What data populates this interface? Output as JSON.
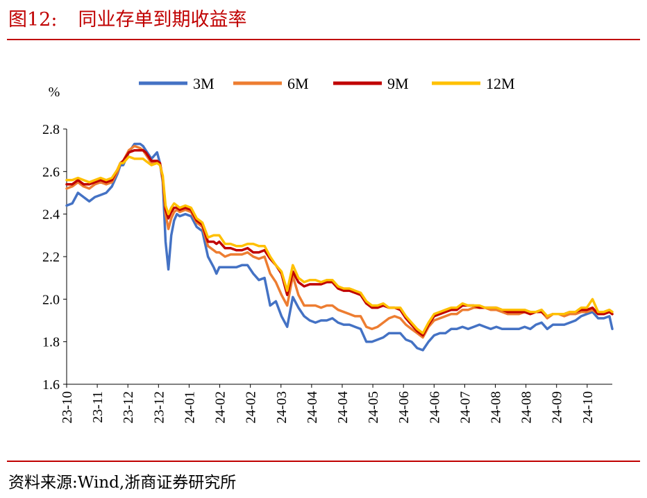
{
  "figure": {
    "number": "图12:",
    "title": "同业存单到期收益率",
    "source": "资料来源:Wind,浙商证券研究所"
  },
  "chart_data": {
    "type": "line",
    "title": "同业存单到期收益率",
    "ylabel": "%",
    "xlabel": "",
    "ylim": [
      1.6,
      2.8
    ],
    "yticks": [
      "1.6",
      "1.8",
      "2.0",
      "2.2",
      "2.4",
      "2.6",
      "2.8"
    ],
    "grid": false,
    "legend_position": "top",
    "x_ticks": [
      "23-10",
      "23-11",
      "23-12",
      "23-12",
      "24-01",
      "24-02",
      "24-02",
      "24-03",
      "24-04",
      "24-04",
      "24-05",
      "24-06",
      "24-06",
      "24-07",
      "24-08",
      "24-08",
      "24-09",
      "24-10"
    ],
    "x": [
      0,
      2,
      4,
      6,
      8,
      10,
      12,
      14,
      16,
      18,
      19,
      20,
      22,
      24,
      26,
      27,
      28,
      30,
      32,
      33,
      34,
      35,
      36,
      37,
      38,
      39,
      40,
      42,
      44,
      46,
      48,
      50,
      52,
      53,
      54,
      56,
      58,
      60,
      62,
      64,
      66,
      68,
      70,
      72,
      74,
      76,
      78,
      80,
      82,
      84,
      86,
      88,
      90,
      92,
      94,
      96,
      98,
      100,
      102,
      104,
      106,
      108,
      110,
      112,
      114,
      116,
      118,
      120,
      122,
      124,
      126,
      128,
      130,
      132,
      134,
      136,
      138,
      140,
      142,
      144,
      146,
      148,
      150,
      152,
      154,
      156,
      158,
      160,
      162,
      164,
      166,
      168,
      170,
      172,
      174,
      176,
      178,
      180,
      182,
      184,
      186,
      188,
      190,
      192,
      193
    ],
    "series": [
      {
        "name": "3M",
        "color": "#4472c4",
        "values": [
          2.44,
          2.45,
          2.5,
          2.48,
          2.46,
          2.48,
          2.49,
          2.5,
          2.53,
          2.59,
          2.63,
          2.63,
          2.69,
          2.73,
          2.73,
          2.72,
          2.7,
          2.66,
          2.69,
          2.64,
          2.55,
          2.27,
          2.14,
          2.3,
          2.37,
          2.4,
          2.39,
          2.4,
          2.39,
          2.34,
          2.32,
          2.2,
          2.15,
          2.12,
          2.15,
          2.15,
          2.15,
          2.15,
          2.16,
          2.16,
          2.12,
          2.09,
          2.1,
          1.97,
          1.99,
          1.92,
          1.87,
          2.01,
          1.96,
          1.92,
          1.9,
          1.89,
          1.9,
          1.9,
          1.91,
          1.89,
          1.88,
          1.88,
          1.87,
          1.86,
          1.8,
          1.8,
          1.81,
          1.82,
          1.84,
          1.84,
          1.84,
          1.81,
          1.8,
          1.77,
          1.76,
          1.8,
          1.83,
          1.84,
          1.84,
          1.86,
          1.86,
          1.87,
          1.86,
          1.87,
          1.88,
          1.87,
          1.86,
          1.87,
          1.86,
          1.86,
          1.86,
          1.86,
          1.87,
          1.86,
          1.88,
          1.89,
          1.86,
          1.88,
          1.88,
          1.88,
          1.89,
          1.9,
          1.92,
          1.93,
          1.94,
          1.91,
          1.91,
          1.92,
          1.86
        ]
      },
      {
        "name": "6M",
        "color": "#ed7d31",
        "values": [
          2.52,
          2.53,
          2.55,
          2.53,
          2.52,
          2.54,
          2.55,
          2.54,
          2.55,
          2.6,
          2.64,
          2.65,
          2.7,
          2.72,
          2.71,
          2.7,
          2.68,
          2.64,
          2.65,
          2.64,
          2.56,
          2.4,
          2.33,
          2.38,
          2.41,
          2.42,
          2.41,
          2.42,
          2.41,
          2.36,
          2.34,
          2.25,
          2.23,
          2.22,
          2.22,
          2.2,
          2.21,
          2.21,
          2.21,
          2.22,
          2.2,
          2.19,
          2.2,
          2.12,
          2.08,
          2.02,
          1.97,
          2.11,
          2.02,
          1.97,
          1.97,
          1.97,
          1.96,
          1.97,
          1.97,
          1.95,
          1.94,
          1.93,
          1.92,
          1.92,
          1.87,
          1.86,
          1.87,
          1.89,
          1.91,
          1.92,
          1.91,
          1.88,
          1.86,
          1.84,
          1.82,
          1.87,
          1.9,
          1.91,
          1.92,
          1.93,
          1.93,
          1.95,
          1.95,
          1.96,
          1.96,
          1.96,
          1.95,
          1.95,
          1.94,
          1.93,
          1.93,
          1.93,
          1.94,
          1.93,
          1.94,
          1.94,
          1.91,
          1.93,
          1.93,
          1.92,
          1.93,
          1.93,
          1.94,
          1.94,
          1.95,
          1.93,
          1.93,
          1.94,
          1.93
        ]
      },
      {
        "name": "9M",
        "color": "#c00000",
        "values": [
          2.54,
          2.54,
          2.56,
          2.54,
          2.54,
          2.55,
          2.56,
          2.55,
          2.56,
          2.61,
          2.64,
          2.65,
          2.69,
          2.7,
          2.7,
          2.7,
          2.69,
          2.65,
          2.65,
          2.64,
          2.57,
          2.42,
          2.38,
          2.41,
          2.43,
          2.43,
          2.42,
          2.43,
          2.42,
          2.37,
          2.35,
          2.27,
          2.27,
          2.26,
          2.27,
          2.24,
          2.24,
          2.23,
          2.23,
          2.24,
          2.22,
          2.22,
          2.23,
          2.19,
          2.16,
          2.12,
          2.02,
          2.13,
          2.08,
          2.06,
          2.07,
          2.07,
          2.07,
          2.08,
          2.08,
          2.05,
          2.04,
          2.04,
          2.03,
          2.02,
          1.98,
          1.96,
          1.96,
          1.97,
          1.96,
          1.96,
          1.95,
          1.91,
          1.88,
          1.85,
          1.83,
          1.88,
          1.92,
          1.93,
          1.94,
          1.95,
          1.95,
          1.97,
          1.97,
          1.97,
          1.96,
          1.96,
          1.96,
          1.96,
          1.95,
          1.94,
          1.94,
          1.94,
          1.94,
          1.93,
          1.94,
          1.94,
          1.92,
          1.93,
          1.93,
          1.93,
          1.94,
          1.94,
          1.95,
          1.95,
          1.96,
          1.93,
          1.93,
          1.94,
          1.93
        ]
      },
      {
        "name": "12M",
        "color": "#ffc000",
        "values": [
          2.56,
          2.56,
          2.57,
          2.56,
          2.55,
          2.56,
          2.57,
          2.56,
          2.57,
          2.61,
          2.64,
          2.64,
          2.67,
          2.66,
          2.66,
          2.66,
          2.65,
          2.63,
          2.64,
          2.63,
          2.58,
          2.44,
          2.4,
          2.43,
          2.45,
          2.44,
          2.43,
          2.44,
          2.43,
          2.38,
          2.36,
          2.29,
          2.3,
          2.3,
          2.3,
          2.26,
          2.26,
          2.25,
          2.25,
          2.26,
          2.26,
          2.25,
          2.25,
          2.2,
          2.16,
          2.13,
          2.04,
          2.16,
          2.1,
          2.08,
          2.09,
          2.09,
          2.08,
          2.09,
          2.09,
          2.06,
          2.05,
          2.05,
          2.04,
          2.03,
          1.99,
          1.97,
          1.97,
          1.98,
          1.96,
          1.96,
          1.96,
          1.92,
          1.89,
          1.86,
          1.84,
          1.89,
          1.93,
          1.94,
          1.95,
          1.96,
          1.96,
          1.98,
          1.97,
          1.97,
          1.97,
          1.96,
          1.96,
          1.96,
          1.95,
          1.95,
          1.95,
          1.95,
          1.95,
          1.94,
          1.94,
          1.95,
          1.92,
          1.93,
          1.93,
          1.93,
          1.94,
          1.94,
          1.96,
          1.96,
          2.0,
          1.94,
          1.94,
          1.95,
          1.94
        ]
      }
    ]
  }
}
